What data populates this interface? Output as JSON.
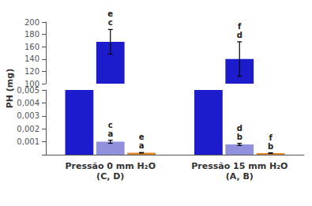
{
  "chart_data": [
    {
      "type": "bar",
      "ylabel": "PH (mg)",
      "categories": [
        null,
        null
      ],
      "tick_labels": "y",
      "ylim": [
        100,
        200
      ],
      "yticks": [
        100,
        120,
        140,
        160,
        180,
        200
      ],
      "grid": false,
      "series": [
        {
          "color": "#1c1ccc",
          "values": [
            168,
            140
          ],
          "errors": [
            20,
            28
          ],
          "annotations": [
            "e\nc",
            "f\nd"
          ]
        }
      ]
    },
    {
      "type": "bar",
      "categories": [
        "Pressão 0 mm H₂O\n(C, D)",
        "Pressão 15 mm H₂O\n(A, B)"
      ],
      "ylim": [
        0,
        0.005
      ],
      "yticks": [
        {
          "value": 0,
          "label": ""
        },
        {
          "value": 0.001,
          "label": "0,001"
        },
        {
          "value": 0.002,
          "label": "0,002"
        },
        {
          "value": 0.003,
          "label": "0,003"
        },
        {
          "value": 0.004,
          "label": "0,004"
        },
        {
          "value": 0.005,
          "label": "0,005"
        }
      ],
      "grid": false,
      "series": [
        {
          "color": "#1c1ccc",
          "values": [
            0.005,
            0.005
          ],
          "errors": [
            0.0,
            0.0
          ],
          "annotations": [
            null,
            null
          ]
        },
        {
          "color": "#9090dd",
          "values": [
            0.001,
            0.0008
          ],
          "errors": [
            0.00012,
            8e-05
          ],
          "annotations": [
            "c\na",
            "d\nb"
          ]
        },
        {
          "color": "#e08828",
          "values": [
            0.00015,
            0.00012
          ],
          "errors": [
            2e-05,
            2e-05
          ],
          "annotations": [
            "e\na",
            "f\nb"
          ]
        }
      ]
    }
  ]
}
